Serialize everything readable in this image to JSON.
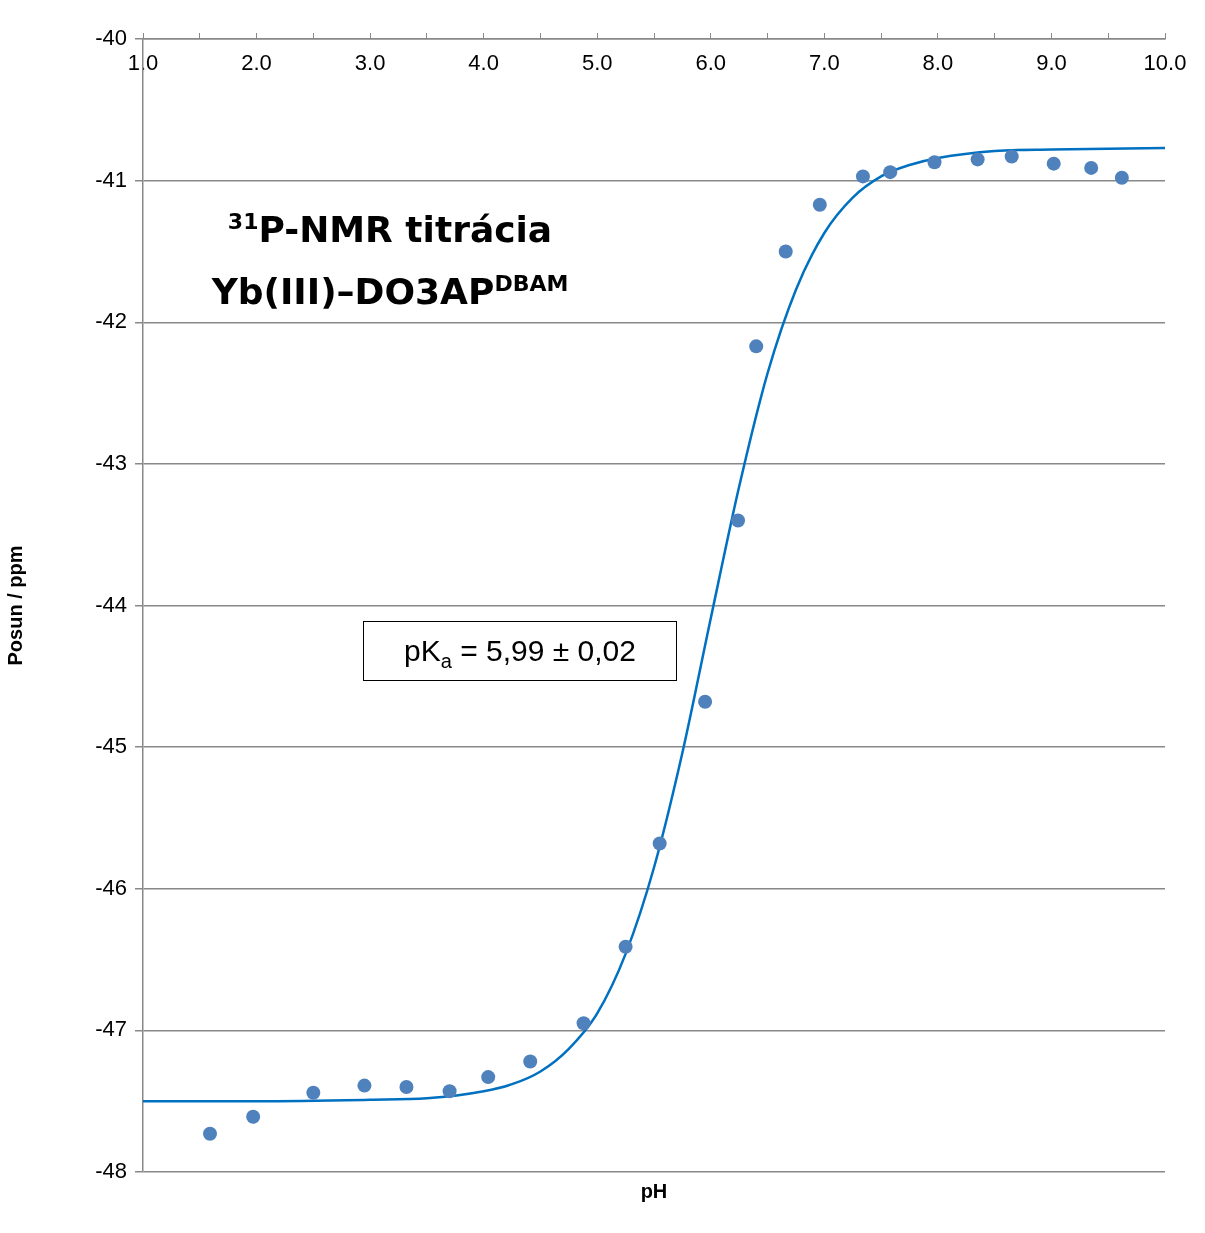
{
  "chart_data": {
    "type": "scatter",
    "title": "$^{31}$P-NMR titrácia",
    "subtitle": "Yb(III)–DO3AP$^{DBAM}$",
    "xlabel": "pH",
    "ylabel": "Posun / ppm",
    "annotations": [
      "pK$_{a}$ = 5,99 ± 0,02"
    ],
    "xlim": [
      1,
      10
    ],
    "ylim": [
      -48,
      -40
    ],
    "xticks": [
      {
        "value": 1,
        "label": "1.0"
      },
      {
        "value": 1.5,
        "label": null
      },
      {
        "value": 2,
        "label": "2.0"
      },
      {
        "value": 2.5,
        "label": null
      },
      {
        "value": 3,
        "label": "3.0"
      },
      {
        "value": 3.5,
        "label": null
      },
      {
        "value": 4,
        "label": "4.0"
      },
      {
        "value": 4.5,
        "label": null
      },
      {
        "value": 5,
        "label": "5.0"
      },
      {
        "value": 5.5,
        "label": null
      },
      {
        "value": 6,
        "label": "6.0"
      },
      {
        "value": 6.5,
        "label": null
      },
      {
        "value": 7,
        "label": "7.0"
      },
      {
        "value": 7.5,
        "label": null
      },
      {
        "value": 8,
        "label": "8.0"
      },
      {
        "value": 8.5,
        "label": null
      },
      {
        "value": 9,
        "label": "9.0"
      },
      {
        "value": 9.5,
        "label": null
      },
      {
        "value": 10,
        "label": "10.0"
      }
    ],
    "yticks": [
      -40,
      -41,
      -42,
      -43,
      -44,
      -45,
      -46,
      -47,
      -48
    ],
    "grid": "y",
    "series": [
      {
        "type": "scatter",
        "color": "#4f81bd",
        "marker": "circle",
        "x": [
          1.59,
          1.97,
          2.5,
          2.95,
          3.32,
          3.7,
          4.04,
          4.41,
          4.88,
          5.25,
          5.55,
          5.95,
          6.24,
          6.4,
          6.66,
          6.96,
          7.34,
          7.58,
          7.97,
          8.35,
          8.65,
          9.02,
          9.35,
          9.62
        ],
        "values": [
          -47.73,
          -47.61,
          -47.44,
          -47.39,
          -47.4,
          -47.43,
          -47.33,
          -47.22,
          -46.95,
          -46.41,
          -45.68,
          -44.68,
          -43.4,
          -42.17,
          -41.5,
          -41.17,
          -40.97,
          -40.94,
          -40.87,
          -40.85,
          -40.83,
          -40.88,
          -40.91,
          -40.98
        ]
      },
      {
        "type": "line",
        "color": "#0070c0",
        "marker": "none",
        "x": [
          1,
          2,
          3,
          3.5,
          4,
          4.25,
          4.5,
          4.75,
          5,
          5.25,
          5.5,
          5.75,
          6,
          6.25,
          6.5,
          6.75,
          7,
          7.25,
          7.5,
          7.75,
          8,
          8.5,
          9,
          10
        ],
        "values": [
          -47.5,
          -47.5,
          -47.49,
          -47.48,
          -47.43,
          -47.38,
          -47.29,
          -47.13,
          -46.88,
          -46.46,
          -45.85,
          -45.04,
          -44.09,
          -43.16,
          -42.36,
          -41.77,
          -41.37,
          -41.12,
          -40.97,
          -40.89,
          -40.84,
          -40.79,
          -40.78,
          -40.77
        ]
      }
    ]
  }
}
